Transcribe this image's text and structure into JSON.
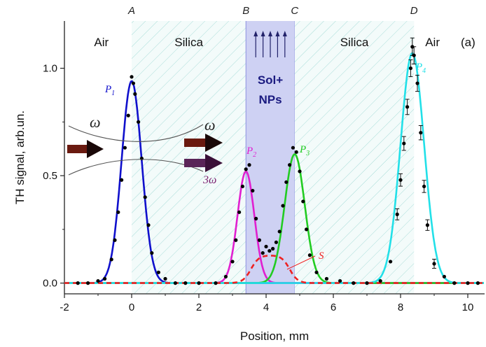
{
  "chart_data": {
    "type": "line",
    "title": "",
    "xlabel": "Position, mm",
    "ylabel": "TH signal, arb.un.",
    "xlim": [
      -2,
      10.5
    ],
    "ylim": [
      -0.05,
      1.22
    ],
    "x_ticks": [
      -2,
      0,
      2,
      4,
      6,
      8,
      10
    ],
    "y_ticks": [
      0.0,
      0.5,
      1.0
    ],
    "x_tick_labels": [
      "-2",
      "0",
      "2",
      "4",
      "6",
      "8",
      "10"
    ],
    "y_tick_labels": [
      "0.0",
      "0.5",
      "1.0"
    ],
    "panel_tag": "(a)",
    "regions": [
      {
        "label": "Air",
        "x_start": -2,
        "x_end": 0,
        "fill": "none"
      },
      {
        "label": "Silica",
        "x_start": 0,
        "x_end": 3.4,
        "fill": "hatch"
      },
      {
        "label": "Sol+\nNPs",
        "label_lines": [
          "Sol+",
          "NPs"
        ],
        "x_start": 3.4,
        "x_end": 4.85,
        "fill": "blue"
      },
      {
        "label": "Silica",
        "x_start": 4.85,
        "x_end": 8.4,
        "fill": "hatch"
      },
      {
        "label": "Air",
        "x_start": 8.4,
        "x_end": 10.5,
        "fill": "none"
      }
    ],
    "interfaces": [
      {
        "label": "A",
        "x": 0.0
      },
      {
        "label": "B",
        "x": 3.4
      },
      {
        "label": "C",
        "x": 4.85
      },
      {
        "label": "D",
        "x": 8.4
      }
    ],
    "series": [
      {
        "name": "P1",
        "color": "#1010cc",
        "peak_x": 0.0,
        "peak_y": 0.94,
        "sigma": 0.3
      },
      {
        "name": "P2",
        "color": "#e020d0",
        "peak_x": 3.4,
        "peak_y": 0.52,
        "sigma": 0.25
      },
      {
        "name": "P3",
        "color": "#22cc22",
        "peak_x": 4.85,
        "peak_y": 0.6,
        "sigma": 0.3
      },
      {
        "name": "P4",
        "color": "#22e0e8",
        "peak_x": 8.35,
        "peak_y": 1.07,
        "sigma": 0.35
      },
      {
        "name": "S",
        "color": "#ee2222",
        "style": "dashed",
        "plateau_y": 0.13,
        "x_start": 3.4,
        "x_end": 4.85
      }
    ],
    "measured_points": {
      "color": "#000000",
      "x": [
        -1.6,
        -1.3,
        -1.0,
        -0.8,
        -0.6,
        -0.5,
        -0.4,
        -0.3,
        -0.2,
        -0.1,
        0.0,
        0.05,
        0.1,
        0.2,
        0.3,
        0.4,
        0.5,
        0.6,
        0.8,
        1.0,
        1.3,
        1.6,
        2.0,
        2.5,
        2.8,
        3.0,
        3.1,
        3.2,
        3.3,
        3.4,
        3.5,
        3.6,
        3.7,
        3.8,
        3.9,
        4.0,
        4.1,
        4.2,
        4.3,
        4.4,
        4.5,
        4.6,
        4.7,
        4.8,
        4.9,
        5.0,
        5.1,
        5.2,
        5.3,
        5.5,
        5.8,
        6.2,
        6.6,
        7.0,
        7.4,
        7.7,
        7.9,
        8.0,
        8.1,
        8.2,
        8.3,
        8.35,
        8.4,
        8.5,
        8.6,
        8.7,
        8.8,
        9.0,
        9.3,
        9.6,
        10.0,
        10.3
      ],
      "y": [
        0.0,
        0.0,
        0.01,
        0.02,
        0.11,
        0.2,
        0.33,
        0.48,
        0.63,
        0.78,
        0.96,
        0.93,
        0.88,
        0.75,
        0.58,
        0.4,
        0.27,
        0.14,
        0.05,
        0.02,
        0.0,
        0.0,
        0.0,
        0.0,
        0.03,
        0.1,
        0.2,
        0.33,
        0.45,
        0.53,
        0.55,
        0.43,
        0.3,
        0.2,
        0.14,
        0.17,
        0.15,
        0.16,
        0.19,
        0.24,
        0.36,
        0.47,
        0.55,
        0.63,
        0.61,
        0.52,
        0.38,
        0.25,
        0.13,
        0.05,
        0.02,
        0.01,
        0.0,
        0.0,
        0.01,
        0.1,
        0.32,
        0.48,
        0.65,
        0.82,
        1.0,
        1.1,
        1.06,
        0.93,
        0.7,
        0.45,
        0.27,
        0.09,
        0.03,
        0.0,
        0.0,
        0.0
      ],
      "error_bar_x_min": 7.9,
      "error_bar_x_max": 9.0
    },
    "annotations": [
      {
        "text": "ω",
        "kind": "input-beam"
      },
      {
        "text": "ω",
        "kind": "transmitted-beam"
      },
      {
        "text": "3ω",
        "kind": "third-harmonic-beam"
      }
    ]
  }
}
